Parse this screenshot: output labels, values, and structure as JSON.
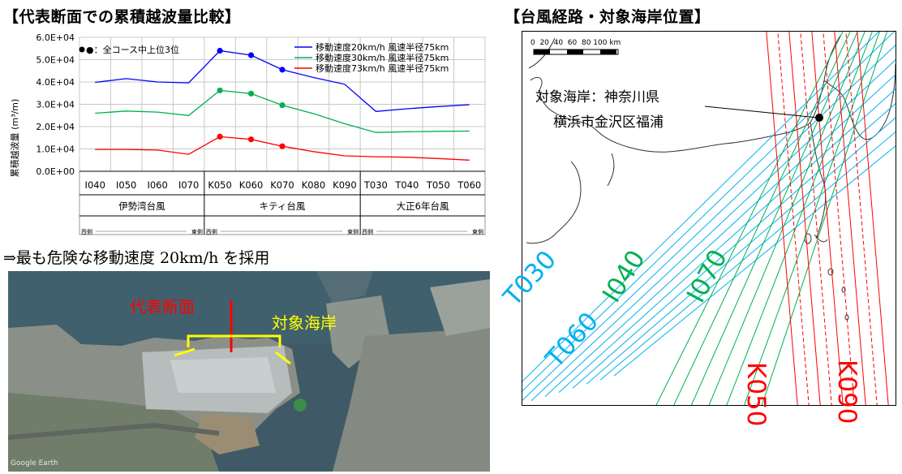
{
  "left_title": "【代表断面での累積越波量比較】",
  "right_title": "【台風経路・対象海岸位置】",
  "conclusion": "⇒最も危険な移動速度 20km/h を採用",
  "chart_data": {
    "type": "line",
    "title": "",
    "ylabel": "累積越波量 (m³/m)",
    "y_ticks": [
      "0.0E+00",
      "1.0E+04",
      "2.0E+04",
      "3.0E+04",
      "4.0E+04",
      "5.0E+04",
      "6.0E+04"
    ],
    "ylim": [
      0,
      60000
    ],
    "grid": true,
    "legend_position": "top-right",
    "categories": [
      "I040",
      "I050",
      "I060",
      "I070",
      "K050",
      "K060",
      "K070",
      "K080",
      "K090",
      "T030",
      "T040",
      "T050",
      "T060"
    ],
    "groups": [
      {
        "name": "伊勢湾台風",
        "west": "西側",
        "east": "東側",
        "range": [
          0,
          3
        ]
      },
      {
        "name": "キティ台風",
        "west": "西側",
        "east": "東側",
        "range": [
          4,
          8
        ]
      },
      {
        "name": "大正6年台風",
        "west": "西側",
        "east": "東側",
        "range": [
          9,
          12
        ]
      }
    ],
    "marker_note": "●：全コース中上位3位",
    "series": [
      {
        "name": "移動速度20km/h 風速半径75km",
        "color": "#0000ff",
        "values": [
          39800,
          41500,
          40000,
          39600,
          54000,
          52000,
          45500,
          42000,
          39000,
          26800,
          28000,
          29000,
          29800
        ],
        "markers": [
          4,
          5,
          6
        ]
      },
      {
        "name": "移動速度30km/h 風速半径75km",
        "color": "#00b050",
        "values": [
          26000,
          27000,
          26500,
          25000,
          36200,
          34800,
          29600,
          25800,
          21300,
          17400,
          17700,
          17900,
          18000
        ],
        "markers": [
          4,
          5,
          6
        ]
      },
      {
        "name": "移動速度73km/h 風速半径75km",
        "color": "#ff0000",
        "values": [
          9800,
          9800,
          9500,
          7600,
          15500,
          14300,
          11200,
          8800,
          6900,
          6500,
          6300,
          5700,
          5000
        ],
        "markers": [
          4,
          5,
          6
        ]
      }
    ]
  },
  "aerial": {
    "rep_section_label": "代表断面",
    "target_coast_label": "対象海岸",
    "watermark": "Google Earth"
  },
  "map": {
    "scale_label": "0  20  40  60  80 100 km",
    "location_label_1": "対象海岸：神奈川県",
    "location_label_2": "横浜市金沢区福浦",
    "track_labels": [
      {
        "text": "T030",
        "color": "#00b0f0"
      },
      {
        "text": "T060",
        "color": "#00b0f0"
      },
      {
        "text": "I040",
        "color": "#00b050"
      },
      {
        "text": "I070",
        "color": "#00b050"
      },
      {
        "text": "K050",
        "color": "#ff0000"
      },
      {
        "text": "K090",
        "color": "#ff0000"
      }
    ]
  }
}
